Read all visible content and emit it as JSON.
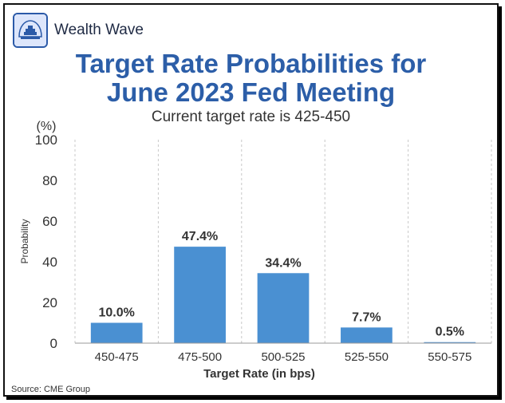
{
  "brand": {
    "name": "Wealth Wave",
    "logo_icon": "wealth-wave-logo-icon"
  },
  "chart_data": {
    "type": "bar",
    "title": "Target Rate Probabilities for\nJune 2023 Fed Meeting",
    "subtitle": "Current target rate is 425-450",
    "xlabel": "Target Rate (in bps)",
    "ylabel": "Probability",
    "yunit": "(%)",
    "categories": [
      "450-475",
      "475-500",
      "500-525",
      "525-550",
      "550-575"
    ],
    "values": [
      10.0,
      47.4,
      34.4,
      7.7,
      0.5
    ],
    "value_labels": [
      "10.0%",
      "47.4%",
      "34.4%",
      "7.7%",
      "0.5%"
    ],
    "ylim": [
      0,
      100
    ],
    "yticks": [
      0,
      20,
      40,
      60,
      80,
      100
    ],
    "grid": "vertical-dashed",
    "bar_color": "#4a90d2"
  },
  "source": "Source: CME Group"
}
